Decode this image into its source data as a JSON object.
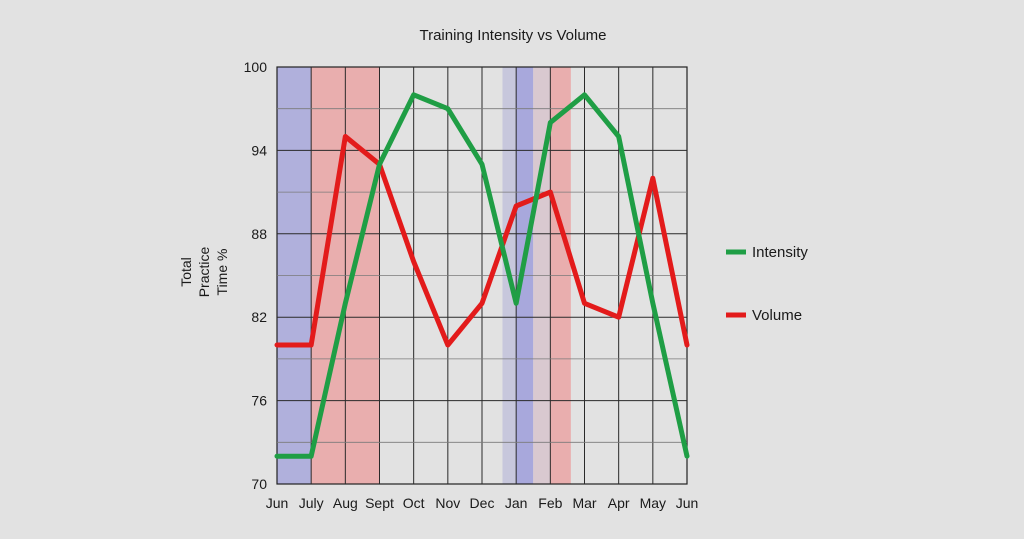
{
  "chart_data": {
    "type": "line",
    "title": "Training Intensity vs Volume",
    "xlabel": "",
    "ylabel_lines": [
      "Total",
      "Practice",
      "Time %"
    ],
    "categories": [
      "Jun",
      "July",
      "Aug",
      "Sept",
      "Oct",
      "Nov",
      "Dec",
      "Jan",
      "Feb",
      "Mar",
      "Apr",
      "May",
      "Jun"
    ],
    "ylim": [
      70,
      100
    ],
    "yticks": [
      70,
      76,
      82,
      88,
      94,
      100
    ],
    "y_minor_gridlines": [
      73,
      79,
      85,
      91,
      97
    ],
    "grid": true,
    "legend_position": "right",
    "series": [
      {
        "name": "Intensity",
        "color": "#1f9e45",
        "values": [
          72,
          72,
          83,
          93,
          98,
          97,
          93,
          83,
          96,
          98,
          95,
          83,
          72
        ]
      },
      {
        "name": "Volume",
        "color": "#e31b1b",
        "values": [
          80,
          80,
          95,
          93,
          86,
          80,
          83,
          90,
          91,
          83,
          82,
          92,
          80
        ]
      }
    ],
    "shaded_bands": [
      {
        "from": 0,
        "to": 1,
        "color": "#b0b0dc"
      },
      {
        "from": 1,
        "to": 3,
        "color": "#e9aeae"
      },
      {
        "from": 6.6,
        "to": 7,
        "color": "#c7c7dc"
      },
      {
        "from": 7,
        "to": 7.5,
        "color": "#a8a8dc"
      },
      {
        "from": 7.5,
        "to": 8,
        "color": "#d9c9d0"
      },
      {
        "from": 8,
        "to": 8.6,
        "color": "#e9aeae"
      }
    ]
  }
}
